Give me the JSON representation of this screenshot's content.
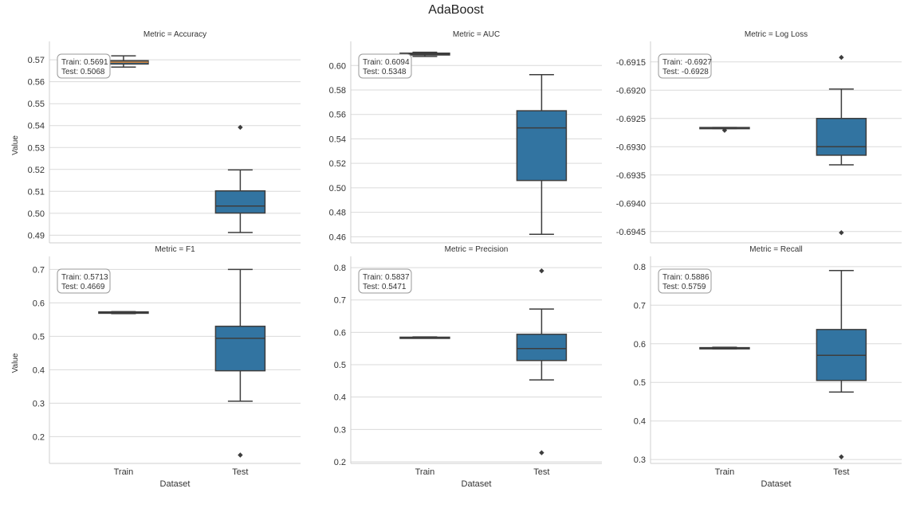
{
  "title": "AdaBoost",
  "chart_data": [
    {
      "type": "box",
      "title": "Metric = Accuracy",
      "xlabel": "",
      "ylabel": "Value",
      "categories": [
        "Train",
        "Test"
      ],
      "show_xticks": false,
      "ylim": [
        0.4865,
        0.5755
      ],
      "yticks": [
        0.49,
        0.5,
        0.51,
        0.52,
        0.53,
        0.54,
        0.55,
        0.56,
        0.57
      ],
      "tick_decimals": 2,
      "stats_box": {
        "train": "Train:  0.5691",
        "test": "Test:   0.5068"
      },
      "boxes": [
        {
          "category": "Train",
          "whisker_low": 0.5667,
          "q1": 0.5681,
          "median": 0.5689,
          "q3": 0.5696,
          "whisker_high": 0.5718,
          "fliers": [],
          "median_color": "#e1812c"
        },
        {
          "category": "Test",
          "whisker_low": 0.4912,
          "q1": 0.5001,
          "median": 0.5033,
          "q3": 0.5102,
          "whisker_high": 0.5198,
          "fliers": [
            0.5392
          ]
        }
      ]
    },
    {
      "type": "box",
      "title": "Metric = AUC",
      "xlabel": "",
      "ylabel": "",
      "categories": [
        "Train",
        "Test"
      ],
      "show_xticks": false,
      "ylim": [
        0.455,
        0.6145
      ],
      "yticks": [
        0.46,
        0.48,
        0.5,
        0.52,
        0.54,
        0.56,
        0.58,
        0.6
      ],
      "tick_decimals": 2,
      "stats_box": {
        "train": "Train:  0.6094",
        "test": "Test:   0.5348"
      },
      "boxes": [
        {
          "category": "Train",
          "whisker_low": 0.6074,
          "q1": 0.6086,
          "median": 0.6093,
          "q3": 0.6101,
          "whisker_high": 0.6108,
          "fliers": []
        },
        {
          "category": "Test",
          "whisker_low": 0.462,
          "q1": 0.506,
          "median": 0.549,
          "q3": 0.563,
          "whisker_high": 0.5925,
          "fliers": []
        }
      ]
    },
    {
      "type": "box",
      "title": "Metric = Log Loss",
      "xlabel": "",
      "ylabel": "",
      "categories": [
        "Train",
        "Test"
      ],
      "show_xticks": false,
      "ylim": [
        -0.6947,
        -0.69125
      ],
      "yticks": [
        -0.6945,
        -0.694,
        -0.6935,
        -0.693,
        -0.6925,
        -0.692,
        -0.6915
      ],
      "tick_decimals": 4,
      "stats_box": {
        "train": "Train:  -0.6927",
        "test": "Test:   -0.6928"
      },
      "boxes": [
        {
          "category": "Train",
          "whisker_low": -0.69268,
          "q1": -0.69268,
          "median": -0.69267,
          "q3": -0.69266,
          "whisker_high": -0.69266,
          "fliers": [
            -0.69271
          ]
        },
        {
          "category": "Test",
          "whisker_low": -0.69332,
          "q1": -0.69315,
          "median": -0.693,
          "q3": -0.6925,
          "whisker_high": -0.69198,
          "fliers": [
            -0.69142,
            -0.69452
          ]
        }
      ]
    },
    {
      "type": "box",
      "title": "Metric = F1",
      "xlabel": "Dataset",
      "ylabel": "Value",
      "categories": [
        "Train",
        "Test"
      ],
      "show_xticks": true,
      "ylim": [
        0.12,
        0.72
      ],
      "yticks": [
        0.2,
        0.3,
        0.4,
        0.5,
        0.6,
        0.7
      ],
      "tick_decimals": 1,
      "stats_box": {
        "train": "Train:  0.5713",
        "test": "Test:   0.4669"
      },
      "boxes": [
        {
          "category": "Train",
          "whisker_low": 0.568,
          "q1": 0.569,
          "median": 0.571,
          "q3": 0.573,
          "whisker_high": 0.574,
          "fliers": []
        },
        {
          "category": "Test",
          "whisker_low": 0.306,
          "q1": 0.397,
          "median": 0.494,
          "q3": 0.53,
          "whisker_high": 0.7,
          "fliers": [
            0.145
          ]
        }
      ]
    },
    {
      "type": "box",
      "title": "Metric = Precision",
      "xlabel": "Dataset",
      "ylabel": "",
      "categories": [
        "Train",
        "Test"
      ],
      "show_xticks": true,
      "ylim": [
        0.195,
        0.815
      ],
      "yticks": [
        0.2,
        0.3,
        0.4,
        0.5,
        0.6,
        0.7,
        0.8
      ],
      "tick_decimals": 1,
      "stats_box": {
        "train": "Train:  0.5837",
        "test": "Test:   0.5471"
      },
      "boxes": [
        {
          "category": "Train",
          "whisker_low": 0.582,
          "q1": 0.583,
          "median": 0.584,
          "q3": 0.585,
          "whisker_high": 0.586,
          "fliers": []
        },
        {
          "category": "Test",
          "whisker_low": 0.453,
          "q1": 0.513,
          "median": 0.55,
          "q3": 0.594,
          "whisker_high": 0.672,
          "fliers": [
            0.79,
            0.228
          ]
        }
      ]
    },
    {
      "type": "box",
      "title": "Metric = Recall",
      "xlabel": "Dataset",
      "ylabel": "",
      "categories": [
        "Train",
        "Test"
      ],
      "show_xticks": true,
      "ylim": [
        0.29,
        0.81
      ],
      "yticks": [
        0.3,
        0.4,
        0.5,
        0.6,
        0.7,
        0.8
      ],
      "tick_decimals": 1,
      "stats_box": {
        "train": "Train:  0.5886",
        "test": "Test:   0.5759"
      },
      "boxes": [
        {
          "category": "Train",
          "whisker_low": 0.587,
          "q1": 0.588,
          "median": 0.589,
          "q3": 0.59,
          "whisker_high": 0.591,
          "fliers": []
        },
        {
          "category": "Test",
          "whisker_low": 0.475,
          "q1": 0.505,
          "median": 0.57,
          "q3": 0.637,
          "whisker_high": 0.79,
          "fliers": [
            0.307
          ]
        }
      ]
    }
  ]
}
